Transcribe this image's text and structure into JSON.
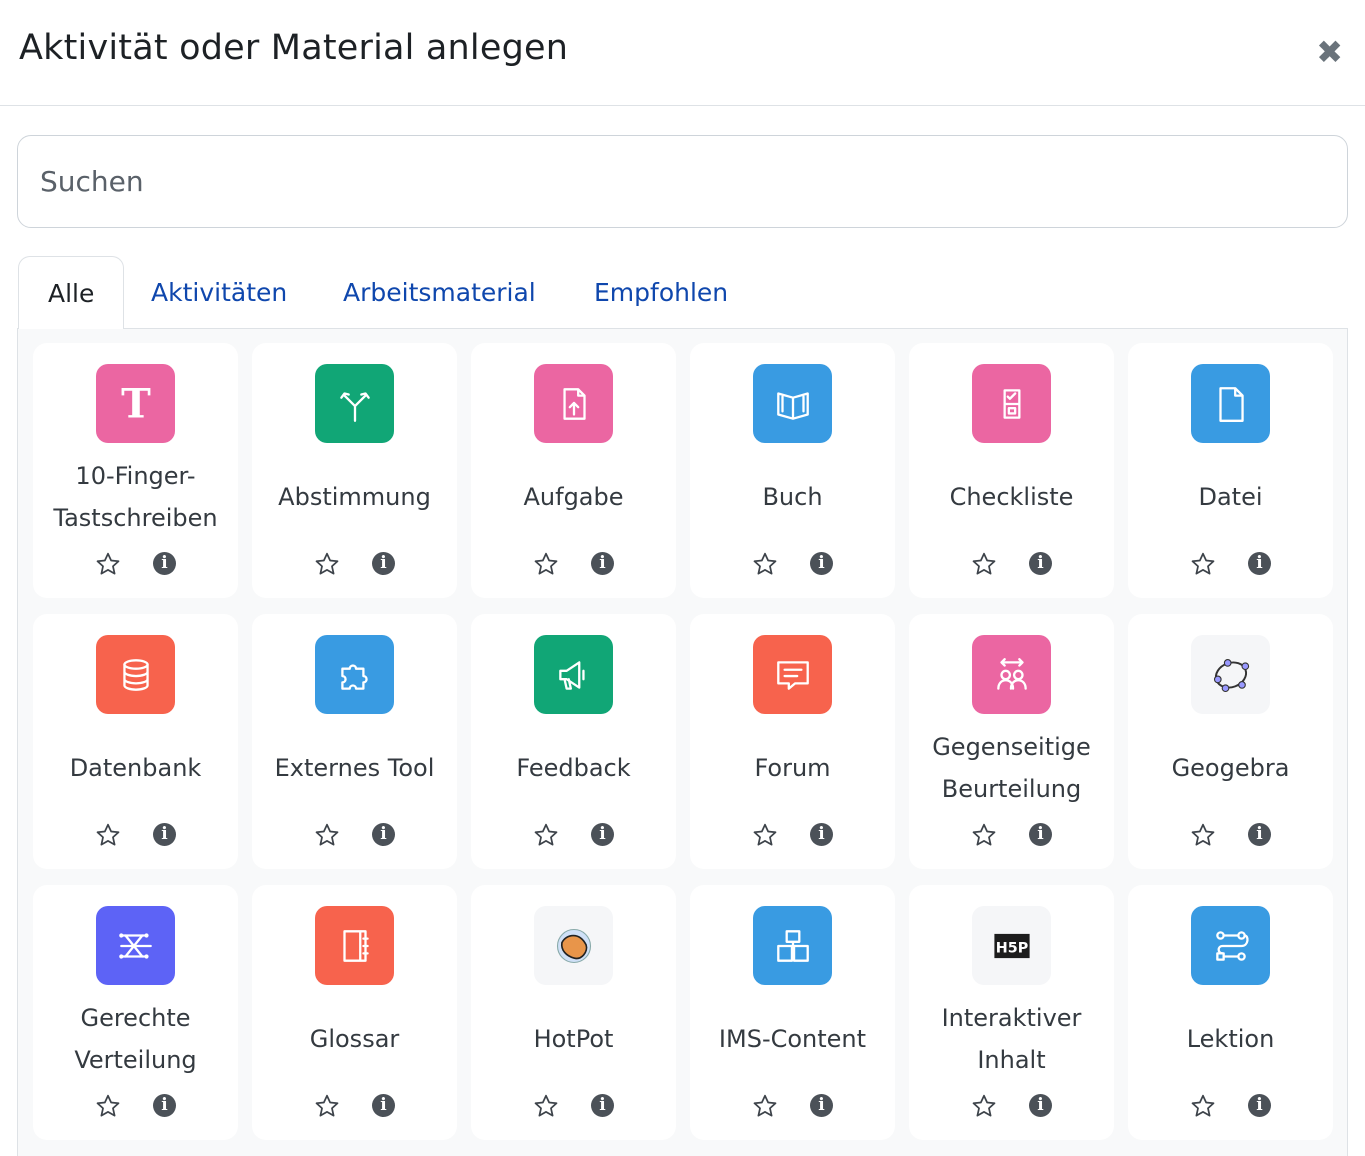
{
  "header": {
    "title": "Aktivität oder Material anlegen",
    "close_icon": "close-icon"
  },
  "search": {
    "placeholder": "Suchen",
    "value": ""
  },
  "tabs": [
    {
      "label": "Alle",
      "active": true
    },
    {
      "label": "Aktivitäten"
    },
    {
      "label": "Arbeitsmaterial"
    },
    {
      "label": "Empfohlen"
    }
  ],
  "modules": [
    {
      "label": "10-Finger-Tastschreiben",
      "icon": "typewriter-T-icon",
      "color": "#eb66a2"
    },
    {
      "label": "Abstimmung",
      "icon": "fork-arrows-icon",
      "color": "#11a676"
    },
    {
      "label": "Aufgabe",
      "icon": "file-upload-icon",
      "color": "#eb66a2"
    },
    {
      "label": "Buch",
      "icon": "book-icon",
      "color": "#399be2"
    },
    {
      "label": "Checkliste",
      "icon": "checklist-icon",
      "color": "#eb66a2"
    },
    {
      "label": "Datei",
      "icon": "file-icon",
      "color": "#399be2"
    },
    {
      "label": "Datenbank",
      "icon": "database-icon",
      "color": "#f7634d"
    },
    {
      "label": "Externes Tool",
      "icon": "puzzle-icon",
      "color": "#399be2"
    },
    {
      "label": "Feedback",
      "icon": "megaphone-icon",
      "color": "#11a676"
    },
    {
      "label": "Forum",
      "icon": "chat-bubble-icon",
      "color": "#f7634d"
    },
    {
      "label": "Gegenseitige Beurteilung",
      "icon": "people-exchange-icon",
      "color": "#eb66a2"
    },
    {
      "label": "Geogebra",
      "icon": "geogebra-icon",
      "color": "#f5f6f8"
    },
    {
      "label": "Gerechte Verteilung",
      "icon": "shuffle-distribution-icon",
      "color": "#5d63f6"
    },
    {
      "label": "Glossar",
      "icon": "notebook-icon",
      "color": "#f7634d"
    },
    {
      "label": "HotPot",
      "icon": "hotpot-icon",
      "color": "#f5f6f8"
    },
    {
      "label": "IMS-Content",
      "icon": "boxes-icon",
      "color": "#399be2"
    },
    {
      "label": "Interaktiver Inhalt",
      "icon": "h5p-icon",
      "color": "#f5f6f8"
    },
    {
      "label": "Lektion",
      "icon": "path-icon",
      "color": "#399be2"
    }
  ],
  "card_actions": {
    "star_icon": "star-outline-icon",
    "info_icon": "info-icon"
  }
}
